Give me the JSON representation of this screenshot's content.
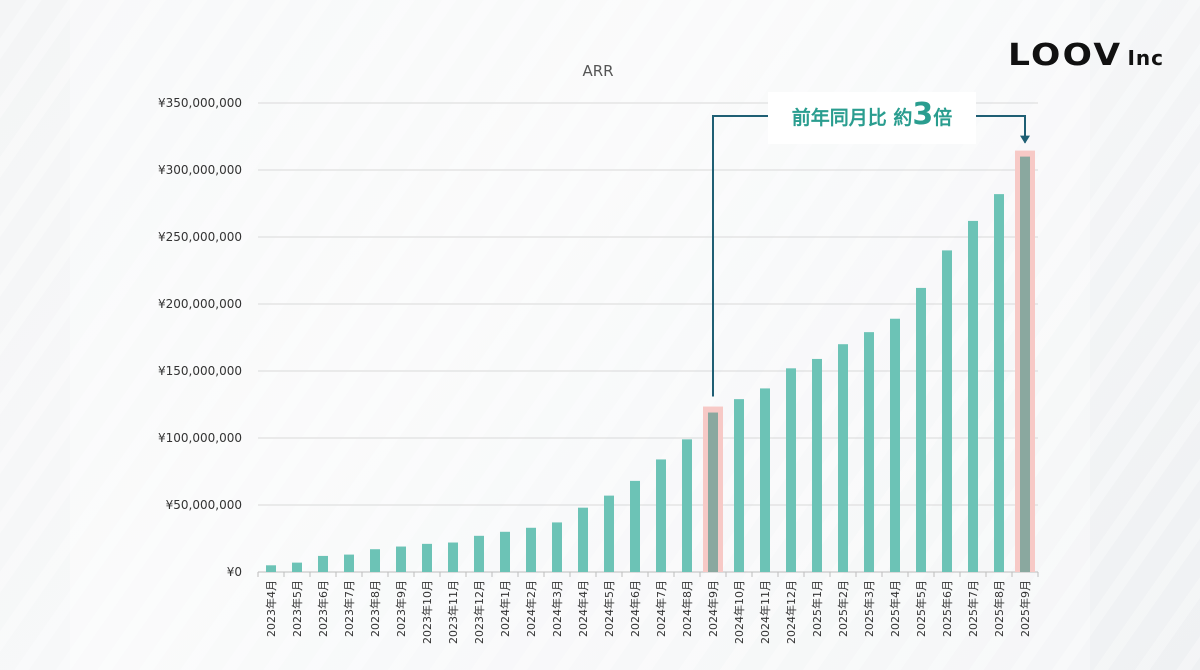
{
  "logo": {
    "mark": "LOOV",
    "suffix": "Inc"
  },
  "chart_data": {
    "type": "bar",
    "title": "ARR",
    "xlabel": "",
    "ylabel": "",
    "ylim": [
      0,
      350000000
    ],
    "yticks": [
      0,
      50000000,
      100000000,
      150000000,
      200000000,
      250000000,
      300000000,
      350000000
    ],
    "ytick_labels": [
      "¥0",
      "¥50,000,000",
      "¥100,000,000",
      "¥150,000,000",
      "¥200,000,000",
      "¥250,000,000",
      "¥300,000,000",
      "¥350,000,000"
    ],
    "grid": true,
    "categories": [
      "2023年4月",
      "2023年5月",
      "2023年6月",
      "2023年7月",
      "2023年8月",
      "2023年9月",
      "2023年10月",
      "2023年11月",
      "2023年12月",
      "2024年1月",
      "2024年2月",
      "2024年3月",
      "2024年4月",
      "2024年5月",
      "2024年6月",
      "2024年7月",
      "2024年8月",
      "2024年9月",
      "2024年10月",
      "2024年11月",
      "2024年12月",
      "2025年1月",
      "2025年2月",
      "2025年3月",
      "2025年4月",
      "2025年5月",
      "2025年6月",
      "2025年7月",
      "2025年8月",
      "2025年9月"
    ],
    "values": [
      5000000,
      7000000,
      12000000,
      13000000,
      17000000,
      19000000,
      21000000,
      22000000,
      27000000,
      30000000,
      33000000,
      37000000,
      48000000,
      57000000,
      68000000,
      84000000,
      99000000,
      119000000,
      129000000,
      137000000,
      152000000,
      159000000,
      170000000,
      179000000,
      189000000,
      212000000,
      240000000,
      262000000,
      282000000,
      310000000
    ],
    "bar_color": "#6cc3b6",
    "highlighted_categories": [
      "2024年9月",
      "2025年9月"
    ],
    "highlight_bar_color": "#8aa89f",
    "highlight_box_color": "#f7c9c6",
    "annotation": {
      "prefix": "前年同月比 約",
      "emphasis": "3",
      "suffix": "倍",
      "from": "2024年9月",
      "to": "2025年9月",
      "line_color": "#1f5f74",
      "text_color": "#2a9d8f"
    }
  }
}
